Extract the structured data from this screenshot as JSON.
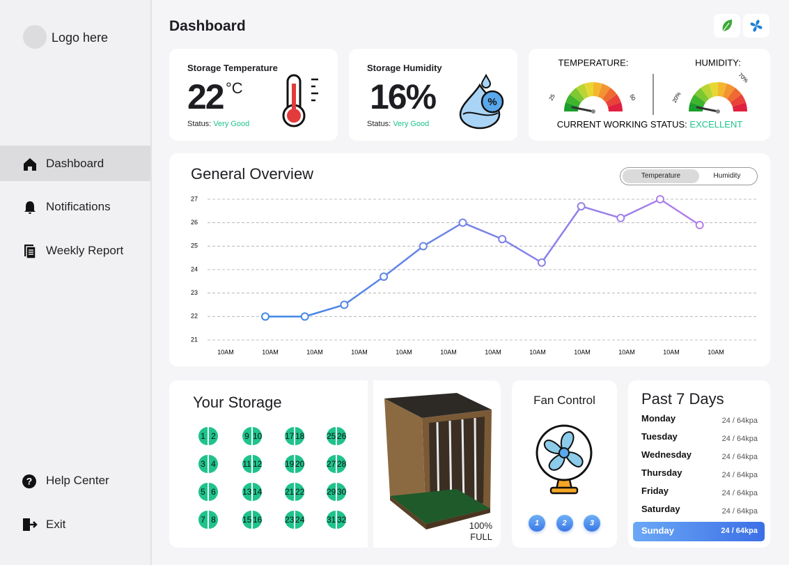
{
  "sidebar": {
    "logo": "Logo here",
    "nav": [
      "Dashboard",
      "Notifications",
      "Weekly Report"
    ],
    "footer": [
      "Help Center",
      "Exit"
    ]
  },
  "header": {
    "title": "Dashboard"
  },
  "temperature_card": {
    "title": "Storage Temperature",
    "value": "22",
    "unit": "°C",
    "status_label": "Status:",
    "status": "Very Good"
  },
  "humidity_card": {
    "title": "Storage Humidity",
    "value": "16%",
    "status_label": "Status:",
    "status": "Very Good"
  },
  "gauges": {
    "temperature": {
      "label": "TEMPERATURE:",
      "min": "25",
      "max": "50"
    },
    "humidity": {
      "label": "HUMIDITY:",
      "min": "20%",
      "max": "70%"
    },
    "status_label": "CURRENT WORKING STATUS:",
    "status": "EXCELLENT"
  },
  "overview_tabs": [
    "Temperature",
    "Humidity"
  ],
  "chart_data": {
    "type": "line",
    "title": "General Overview",
    "categories": [
      "10AM",
      "10AM",
      "10AM",
      "10AM",
      "10AM",
      "10AM",
      "10AM",
      "10AM",
      "10AM",
      "10AM",
      "10AM",
      "10AM"
    ],
    "values": [
      22,
      22,
      22.5,
      23.7,
      25,
      26,
      25.3,
      24.3,
      26.7,
      26.2,
      27,
      25.9
    ],
    "color": "#3b87e6",
    "color_end": "#b57fe8",
    "ylim": [
      21,
      27
    ],
    "yticks": [
      21,
      22,
      23,
      24,
      25,
      26,
      27
    ],
    "grid": true
  },
  "storage": {
    "title": "Your Storage",
    "slots": [
      1,
      2,
      3,
      4,
      5,
      6,
      7,
      8,
      9,
      10,
      11,
      12,
      13,
      14,
      15,
      16,
      17,
      18,
      19,
      20,
      21,
      22,
      23,
      24,
      25,
      26,
      27,
      28,
      29,
      30,
      31,
      32
    ],
    "fill": "100%",
    "fill_label": "FULL"
  },
  "fan": {
    "title": "Fan Control",
    "speeds": [
      1,
      2,
      3
    ]
  },
  "past_days": {
    "title": "Past 7 Days",
    "rows": [
      {
        "day": "Monday",
        "reading": "24 / 64kpa"
      },
      {
        "day": "Tuesday",
        "reading": "24 / 64kpa"
      },
      {
        "day": "Wednesday",
        "reading": "24 / 64kpa"
      },
      {
        "day": "Thursday",
        "reading": "24 / 64kpa"
      },
      {
        "day": "Friday",
        "reading": "24 / 64kpa"
      },
      {
        "day": "Saturday",
        "reading": "24 / 64kpa"
      },
      {
        "day": "Sunday",
        "reading": "24 / 64kpa"
      }
    ]
  }
}
